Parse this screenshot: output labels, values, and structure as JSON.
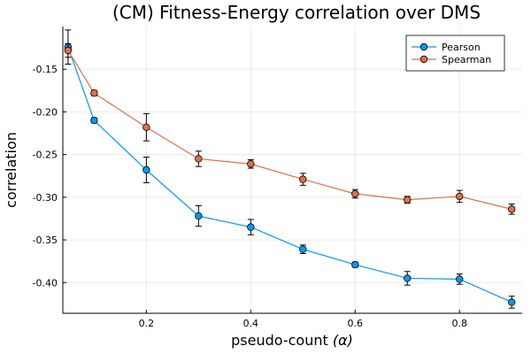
{
  "chart_data": {
    "type": "scatter",
    "title": "(CM) Fitness-Energy correlation over DMS",
    "xlabel": "pseudo-count",
    "xlabel_symbol": "(α)",
    "ylabel": "correlation",
    "xlim": [
      0.04,
      0.92
    ],
    "ylim": [
      -0.436,
      -0.1
    ],
    "xticks": [
      0.2,
      0.4,
      0.6,
      0.8
    ],
    "xtick_labels": [
      "0.2",
      "0.4",
      "0.6",
      "0.8"
    ],
    "yticks": [
      -0.15,
      -0.2,
      -0.25,
      -0.3,
      -0.35,
      -0.4
    ],
    "ytick_labels": [
      "-0.15",
      "-0.20",
      "-0.25",
      "-0.30",
      "-0.35",
      "-0.40"
    ],
    "grid": true,
    "legend_position": "top-right",
    "x": [
      0.05,
      0.1,
      0.2,
      0.3,
      0.4,
      0.5,
      0.6,
      0.7,
      0.8,
      0.9
    ],
    "series": [
      {
        "name": "Pearson",
        "color": "#009AFA",
        "values": [
          -0.124,
          -0.21,
          -0.268,
          -0.322,
          -0.335,
          -0.361,
          -0.379,
          -0.395,
          -0.396,
          -0.423
        ],
        "errors": [
          0.02,
          0.003,
          0.015,
          0.012,
          0.009,
          0.005,
          0.003,
          0.008,
          0.006,
          0.007
        ]
      },
      {
        "name": "Spearman",
        "color": "#E26F46",
        "values": [
          -0.128,
          -0.178,
          -0.218,
          -0.255,
          -0.261,
          -0.279,
          -0.296,
          -0.303,
          -0.299,
          -0.314
        ],
        "errors": [
          0.008,
          0.003,
          0.016,
          0.009,
          0.005,
          0.007,
          0.005,
          0.004,
          0.007,
          0.006
        ]
      }
    ]
  }
}
